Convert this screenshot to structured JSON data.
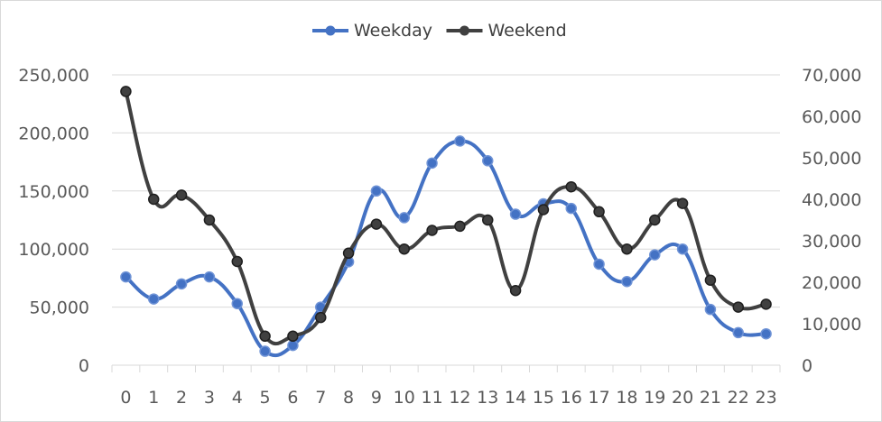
{
  "chart_data": {
    "type": "line",
    "categories": [
      "0",
      "1",
      "2",
      "3",
      "4",
      "5",
      "6",
      "7",
      "8",
      "9",
      "10",
      "11",
      "12",
      "13",
      "14",
      "15",
      "16",
      "17",
      "18",
      "19",
      "20",
      "21",
      "22",
      "23"
    ],
    "series": [
      {
        "name": "Weekday",
        "axis": "left",
        "color": "#4472c4",
        "values": [
          76000,
          57000,
          70000,
          76000,
          53000,
          12000,
          17000,
          50000,
          89000,
          150000,
          127000,
          174000,
          193000,
          176000,
          130000,
          139000,
          135000,
          87000,
          72000,
          95000,
          100000,
          48000,
          28000,
          27000
        ]
      },
      {
        "name": "Weekend",
        "axis": "right",
        "color": "#404040",
        "values": [
          66000,
          40000,
          41000,
          35000,
          25000,
          7000,
          7000,
          11500,
          27000,
          34000,
          28000,
          32500,
          33500,
          35000,
          18000,
          37500,
          43000,
          37000,
          28000,
          35000,
          39000,
          20500,
          14000,
          14700
        ]
      }
    ],
    "y_left": {
      "min": 0,
      "max": 250000,
      "ticks": [
        "0",
        "50,000",
        "100,000",
        "150,000",
        "200,000",
        "250,000"
      ]
    },
    "y_right": {
      "min": 0,
      "max": 70000,
      "ticks": [
        "0",
        "10,000",
        "20,000",
        "30,000",
        "40,000",
        "50,000",
        "60,000",
        "70,000"
      ]
    },
    "legend_position": "top",
    "grid": true
  }
}
